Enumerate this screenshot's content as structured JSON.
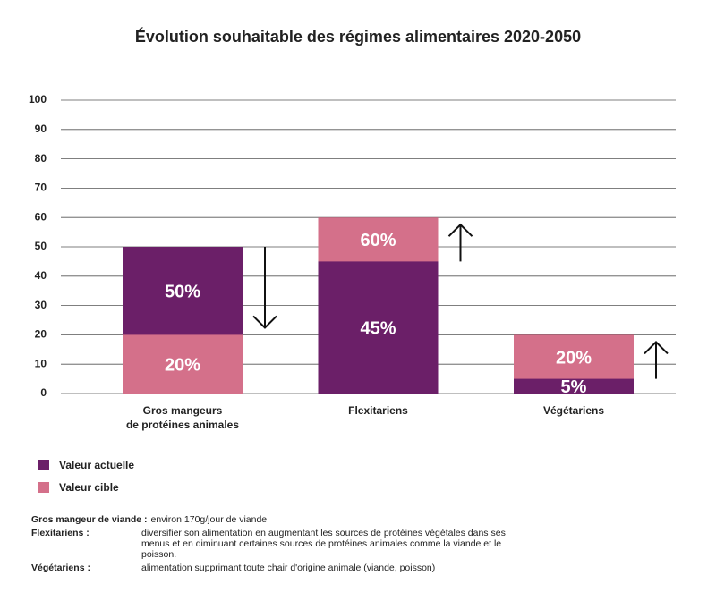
{
  "chart_data": {
    "type": "bar",
    "title": "Évolution souhaitable des régimes alimentaires 2020-2050",
    "categories": [
      "Gros mangeurs\nde protéines animales",
      "Flexitariens",
      "Végétariens"
    ],
    "series": [
      {
        "name": "Valeur actuelle",
        "color": "#6b1f68",
        "values": [
          50,
          45,
          5
        ],
        "value_labels": [
          "50%",
          "45%",
          "5%"
        ]
      },
      {
        "name": "Valeur cible",
        "color": "#d4708a",
        "values": [
          20,
          60,
          20
        ],
        "value_labels": [
          "20%",
          "60%",
          "20%"
        ]
      }
    ],
    "ylim": [
      0,
      100
    ],
    "yticks": [
      0,
      10,
      20,
      30,
      40,
      50,
      60,
      70,
      80,
      90,
      100
    ],
    "grid": true
  },
  "notes": [
    {
      "term": "Gros mangeur de viande :",
      "text": "environ 170g/jour de viande"
    },
    {
      "term": "Flexitariens :",
      "text": "diversifier son alimentation en augmentant les sources de protéines végétales dans ses menus et en diminuant certaines sources de protéines animales comme la viande et le poisson."
    },
    {
      "term": "Végétariens :",
      "text": "alimentation supprimant toute chair d'origine animale (viande, poisson)"
    }
  ]
}
